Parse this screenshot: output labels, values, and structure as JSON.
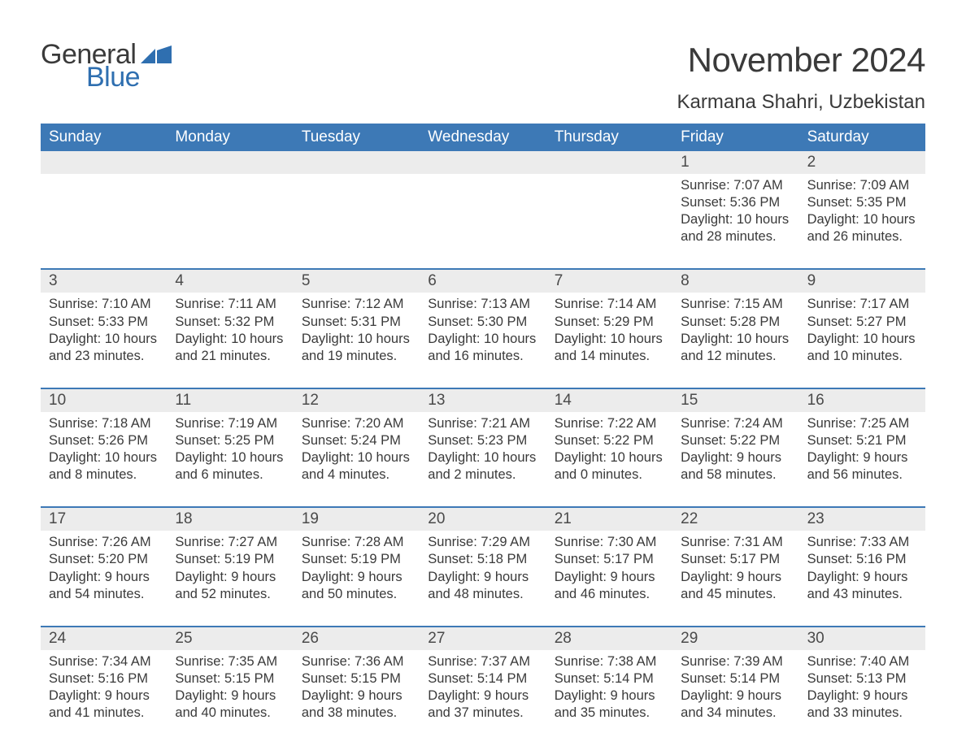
{
  "brand": {
    "word1": "General",
    "word2": "Blue",
    "word1_color": "#3a3a3a",
    "word2_color": "#2f6fb0",
    "triangle_color": "#2f6fb0"
  },
  "title": "November 2024",
  "location": "Karmana Shahri, Uzbekistan",
  "colors": {
    "header_bg": "#3d79b6",
    "header_text": "#ffffff",
    "strip_bg": "#ececec",
    "rule": "#3d79b6",
    "body_text": "#3a3a3a",
    "page_bg": "#ffffff"
  },
  "typography": {
    "title_fontsize": 42,
    "location_fontsize": 24,
    "dow_fontsize": 19,
    "daynum_fontsize": 19,
    "body_fontsize": 16.5,
    "font_family": "Arial"
  },
  "layout": {
    "columns": 7,
    "rows": 5,
    "aspect_width": 1188,
    "aspect_height": 918
  },
  "days_of_week": [
    "Sunday",
    "Monday",
    "Tuesday",
    "Wednesday",
    "Thursday",
    "Friday",
    "Saturday"
  ],
  "weeks": [
    [
      {
        "n": "",
        "sr": "",
        "ss": "",
        "dl1": "",
        "dl2": ""
      },
      {
        "n": "",
        "sr": "",
        "ss": "",
        "dl1": "",
        "dl2": ""
      },
      {
        "n": "",
        "sr": "",
        "ss": "",
        "dl1": "",
        "dl2": ""
      },
      {
        "n": "",
        "sr": "",
        "ss": "",
        "dl1": "",
        "dl2": ""
      },
      {
        "n": "",
        "sr": "",
        "ss": "",
        "dl1": "",
        "dl2": ""
      },
      {
        "n": "1",
        "sr": "Sunrise: 7:07 AM",
        "ss": "Sunset: 5:36 PM",
        "dl1": "Daylight: 10 hours",
        "dl2": "and 28 minutes."
      },
      {
        "n": "2",
        "sr": "Sunrise: 7:09 AM",
        "ss": "Sunset: 5:35 PM",
        "dl1": "Daylight: 10 hours",
        "dl2": "and 26 minutes."
      }
    ],
    [
      {
        "n": "3",
        "sr": "Sunrise: 7:10 AM",
        "ss": "Sunset: 5:33 PM",
        "dl1": "Daylight: 10 hours",
        "dl2": "and 23 minutes."
      },
      {
        "n": "4",
        "sr": "Sunrise: 7:11 AM",
        "ss": "Sunset: 5:32 PM",
        "dl1": "Daylight: 10 hours",
        "dl2": "and 21 minutes."
      },
      {
        "n": "5",
        "sr": "Sunrise: 7:12 AM",
        "ss": "Sunset: 5:31 PM",
        "dl1": "Daylight: 10 hours",
        "dl2": "and 19 minutes."
      },
      {
        "n": "6",
        "sr": "Sunrise: 7:13 AM",
        "ss": "Sunset: 5:30 PM",
        "dl1": "Daylight: 10 hours",
        "dl2": "and 16 minutes."
      },
      {
        "n": "7",
        "sr": "Sunrise: 7:14 AM",
        "ss": "Sunset: 5:29 PM",
        "dl1": "Daylight: 10 hours",
        "dl2": "and 14 minutes."
      },
      {
        "n": "8",
        "sr": "Sunrise: 7:15 AM",
        "ss": "Sunset: 5:28 PM",
        "dl1": "Daylight: 10 hours",
        "dl2": "and 12 minutes."
      },
      {
        "n": "9",
        "sr": "Sunrise: 7:17 AM",
        "ss": "Sunset: 5:27 PM",
        "dl1": "Daylight: 10 hours",
        "dl2": "and 10 minutes."
      }
    ],
    [
      {
        "n": "10",
        "sr": "Sunrise: 7:18 AM",
        "ss": "Sunset: 5:26 PM",
        "dl1": "Daylight: 10 hours",
        "dl2": "and 8 minutes."
      },
      {
        "n": "11",
        "sr": "Sunrise: 7:19 AM",
        "ss": "Sunset: 5:25 PM",
        "dl1": "Daylight: 10 hours",
        "dl2": "and 6 minutes."
      },
      {
        "n": "12",
        "sr": "Sunrise: 7:20 AM",
        "ss": "Sunset: 5:24 PM",
        "dl1": "Daylight: 10 hours",
        "dl2": "and 4 minutes."
      },
      {
        "n": "13",
        "sr": "Sunrise: 7:21 AM",
        "ss": "Sunset: 5:23 PM",
        "dl1": "Daylight: 10 hours",
        "dl2": "and 2 minutes."
      },
      {
        "n": "14",
        "sr": "Sunrise: 7:22 AM",
        "ss": "Sunset: 5:22 PM",
        "dl1": "Daylight: 10 hours",
        "dl2": "and 0 minutes."
      },
      {
        "n": "15",
        "sr": "Sunrise: 7:24 AM",
        "ss": "Sunset: 5:22 PM",
        "dl1": "Daylight: 9 hours",
        "dl2": "and 58 minutes."
      },
      {
        "n": "16",
        "sr": "Sunrise: 7:25 AM",
        "ss": "Sunset: 5:21 PM",
        "dl1": "Daylight: 9 hours",
        "dl2": "and 56 minutes."
      }
    ],
    [
      {
        "n": "17",
        "sr": "Sunrise: 7:26 AM",
        "ss": "Sunset: 5:20 PM",
        "dl1": "Daylight: 9 hours",
        "dl2": "and 54 minutes."
      },
      {
        "n": "18",
        "sr": "Sunrise: 7:27 AM",
        "ss": "Sunset: 5:19 PM",
        "dl1": "Daylight: 9 hours",
        "dl2": "and 52 minutes."
      },
      {
        "n": "19",
        "sr": "Sunrise: 7:28 AM",
        "ss": "Sunset: 5:19 PM",
        "dl1": "Daylight: 9 hours",
        "dl2": "and 50 minutes."
      },
      {
        "n": "20",
        "sr": "Sunrise: 7:29 AM",
        "ss": "Sunset: 5:18 PM",
        "dl1": "Daylight: 9 hours",
        "dl2": "and 48 minutes."
      },
      {
        "n": "21",
        "sr": "Sunrise: 7:30 AM",
        "ss": "Sunset: 5:17 PM",
        "dl1": "Daylight: 9 hours",
        "dl2": "and 46 minutes."
      },
      {
        "n": "22",
        "sr": "Sunrise: 7:31 AM",
        "ss": "Sunset: 5:17 PM",
        "dl1": "Daylight: 9 hours",
        "dl2": "and 45 minutes."
      },
      {
        "n": "23",
        "sr": "Sunrise: 7:33 AM",
        "ss": "Sunset: 5:16 PM",
        "dl1": "Daylight: 9 hours",
        "dl2": "and 43 minutes."
      }
    ],
    [
      {
        "n": "24",
        "sr": "Sunrise: 7:34 AM",
        "ss": "Sunset: 5:16 PM",
        "dl1": "Daylight: 9 hours",
        "dl2": "and 41 minutes."
      },
      {
        "n": "25",
        "sr": "Sunrise: 7:35 AM",
        "ss": "Sunset: 5:15 PM",
        "dl1": "Daylight: 9 hours",
        "dl2": "and 40 minutes."
      },
      {
        "n": "26",
        "sr": "Sunrise: 7:36 AM",
        "ss": "Sunset: 5:15 PM",
        "dl1": "Daylight: 9 hours",
        "dl2": "and 38 minutes."
      },
      {
        "n": "27",
        "sr": "Sunrise: 7:37 AM",
        "ss": "Sunset: 5:14 PM",
        "dl1": "Daylight: 9 hours",
        "dl2": "and 37 minutes."
      },
      {
        "n": "28",
        "sr": "Sunrise: 7:38 AM",
        "ss": "Sunset: 5:14 PM",
        "dl1": "Daylight: 9 hours",
        "dl2": "and 35 minutes."
      },
      {
        "n": "29",
        "sr": "Sunrise: 7:39 AM",
        "ss": "Sunset: 5:14 PM",
        "dl1": "Daylight: 9 hours",
        "dl2": "and 34 minutes."
      },
      {
        "n": "30",
        "sr": "Sunrise: 7:40 AM",
        "ss": "Sunset: 5:13 PM",
        "dl1": "Daylight: 9 hours",
        "dl2": "and 33 minutes."
      }
    ]
  ]
}
